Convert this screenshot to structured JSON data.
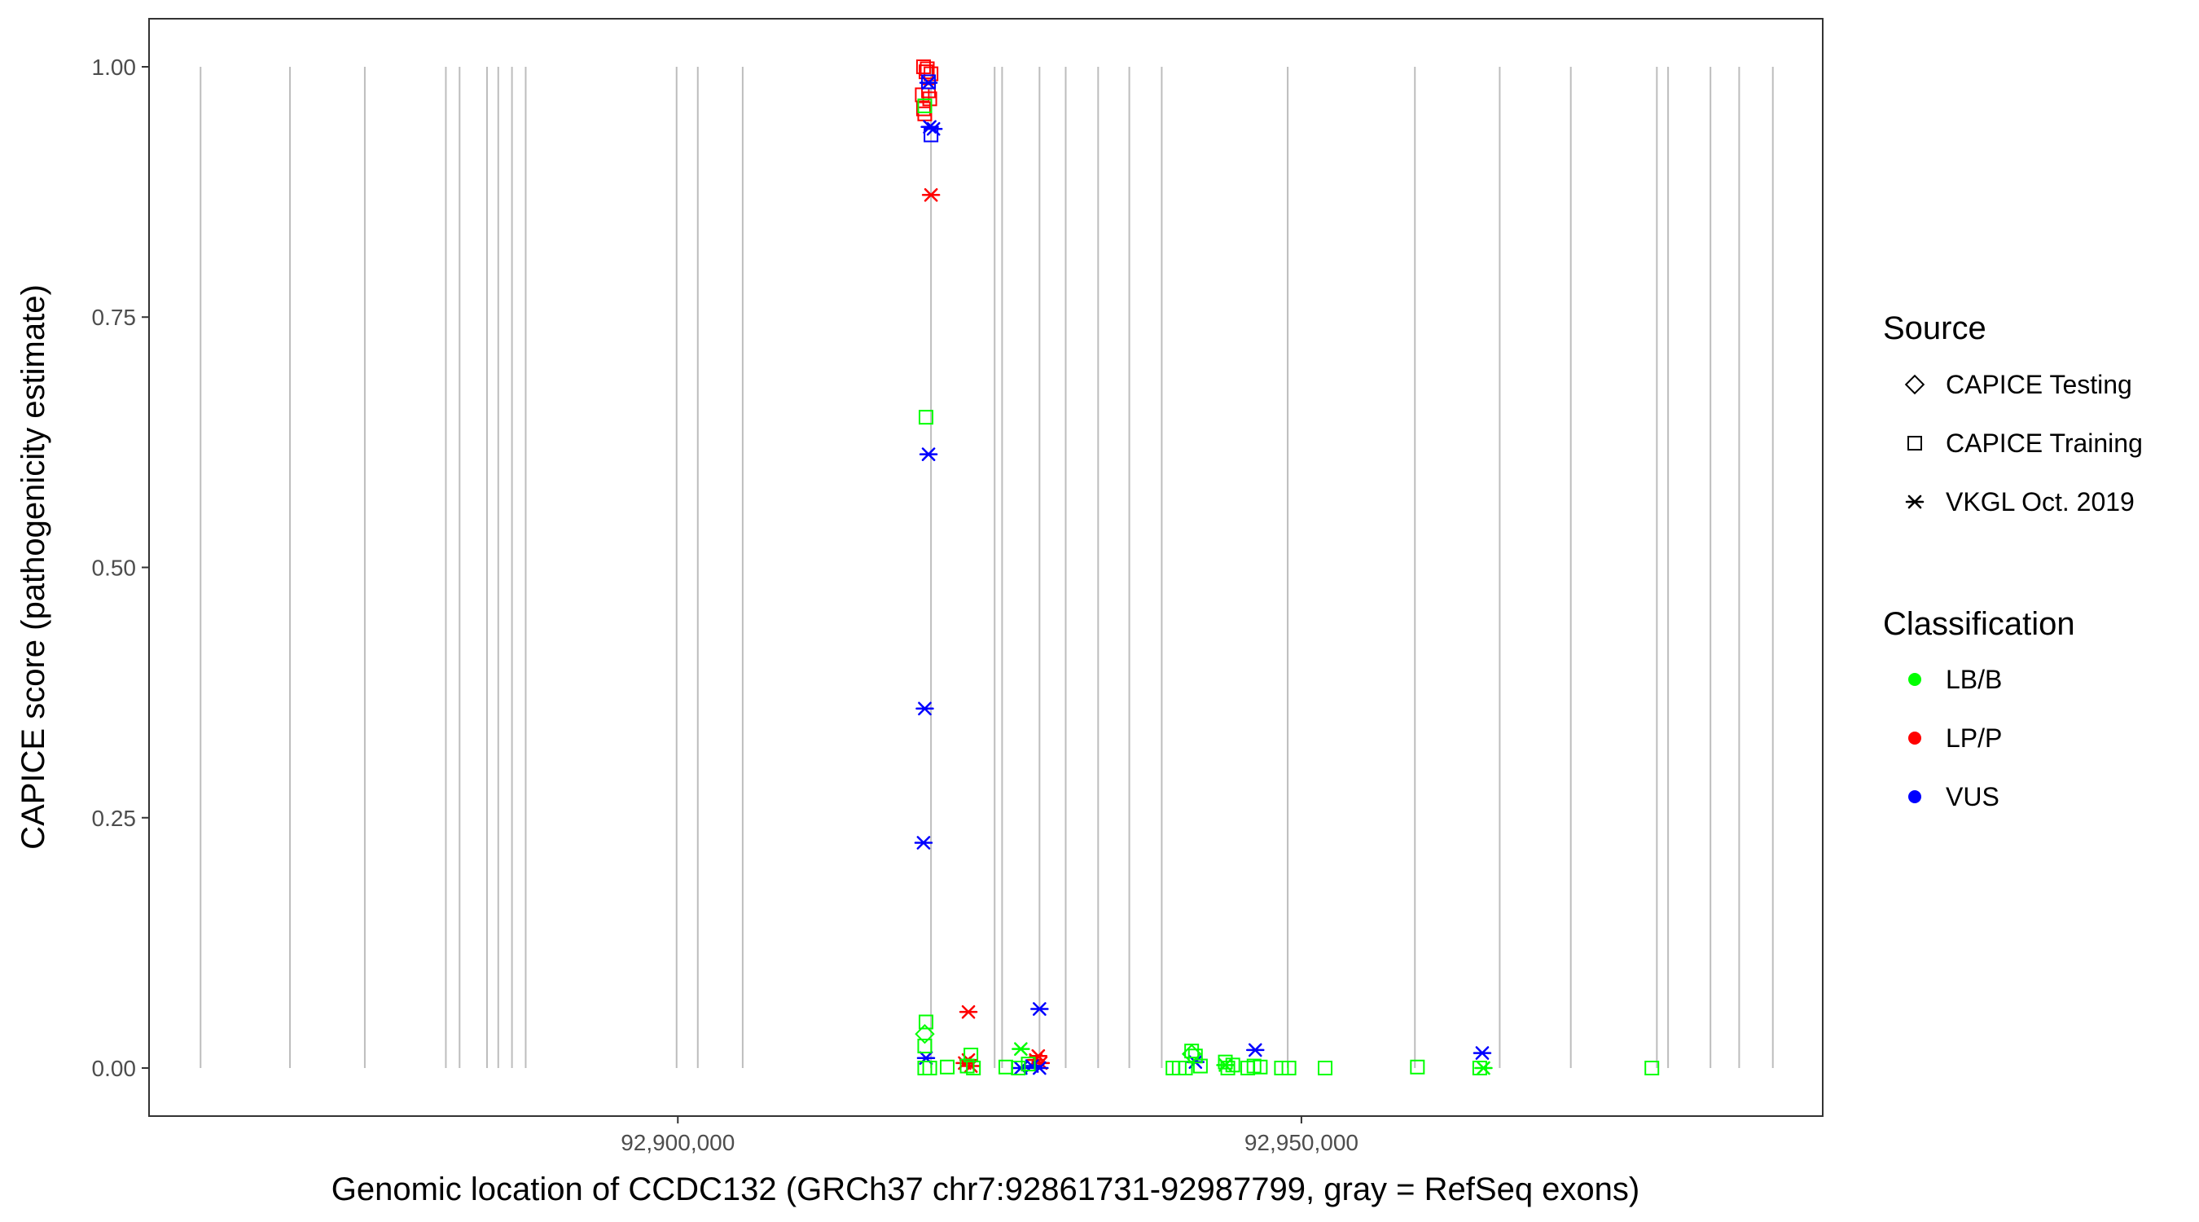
{
  "chart_data": {
    "type": "scatter",
    "xlabel": "Genomic location of CCDC132 (GRCh37 chr7:92861731-92987799, gray = RefSeq exons)",
    "ylabel": "CAPICE score (pathogenicity estimate)",
    "xlim": [
      92857600,
      92991800
    ],
    "ylim": [
      -0.048,
      1.048
    ],
    "x_ticks": [
      {
        "value": 92900000,
        "label": "92,900,000"
      },
      {
        "value": 92950000,
        "label": "92,950,000"
      }
    ],
    "y_ticks": [
      {
        "value": 0.0,
        "label": "0.00"
      },
      {
        "value": 0.25,
        "label": "0.25"
      },
      {
        "value": 0.5,
        "label": "0.50"
      },
      {
        "value": 0.75,
        "label": "0.75"
      },
      {
        "value": 1.0,
        "label": "1.00"
      }
    ],
    "exons": [
      92861731,
      92868900,
      92874900,
      92881400,
      92882500,
      92884700,
      92885600,
      92886700,
      92887800,
      92899900,
      92901600,
      92905200,
      92920300,
      92925400,
      92926000,
      92929000,
      92931100,
      92933700,
      92936200,
      92938800,
      92948900,
      92959100,
      92965900,
      92971600,
      92978500,
      92979400,
      92982800,
      92985100,
      92987799
    ],
    "legend": {
      "source_title": "Source",
      "source_entries": [
        {
          "label": "CAPICE Testing",
          "shape": "diamond"
        },
        {
          "label": "CAPICE Training",
          "shape": "square"
        },
        {
          "label": "VKGL Oct. 2019",
          "shape": "asterisk"
        }
      ],
      "class_title": "Classification",
      "class_entries": [
        {
          "label": "LB/B",
          "color": "#00ff00"
        },
        {
          "label": "LP/P",
          "color": "#ff0000"
        },
        {
          "label": "VUS",
          "color": "#0000ff"
        }
      ],
      "position": "right"
    },
    "series": [
      {
        "name": "CAPICE Training",
        "shape": "square",
        "classification": "LP/P",
        "points": [
          [
            92919700,
            1.0
          ],
          [
            92920000,
            0.998
          ],
          [
            92920300,
            0.993
          ],
          [
            92919900,
            0.995
          ],
          [
            92920100,
            0.976
          ],
          [
            92919600,
            0.972
          ],
          [
            92919700,
            0.958
          ],
          [
            92919800,
            0.953
          ],
          [
            92920200,
            0.968
          ]
        ]
      },
      {
        "name": "VKGL Oct. 2019",
        "shape": "asterisk",
        "classification": "LP/P",
        "points": [
          [
            92920300,
            0.872
          ],
          [
            92923300,
            0.056
          ],
          [
            92923000,
            0.005
          ],
          [
            92923500,
            0.002
          ],
          [
            92923300,
            0.008
          ],
          [
            92928900,
            0.012
          ],
          [
            92929100,
            0.005
          ],
          [
            92928700,
            0.008
          ]
        ]
      },
      {
        "name": "CAPICE Training",
        "shape": "square",
        "classification": "VUS",
        "points": [
          [
            92920300,
            0.932
          ],
          [
            92920100,
            0.985
          ]
        ]
      },
      {
        "name": "VKGL Oct. 2019",
        "shape": "asterisk",
        "classification": "VUS",
        "points": [
          [
            92920200,
            0.94
          ],
          [
            92920500,
            0.938
          ],
          [
            92920100,
            0.984
          ],
          [
            92920100,
            0.613
          ],
          [
            92919800,
            0.359
          ],
          [
            92919700,
            0.225
          ],
          [
            92919900,
            0.01
          ],
          [
            92929000,
            0.059
          ],
          [
            92929000,
            0.0
          ],
          [
            92928400,
            0.002
          ],
          [
            92927500,
            0.0
          ],
          [
            92941500,
            0.006
          ],
          [
            92946300,
            0.018
          ],
          [
            92964500,
            0.015
          ]
        ]
      },
      {
        "name": "CAPICE Training",
        "shape": "square",
        "classification": "LB/B",
        "points": [
          [
            92919800,
            0.961
          ],
          [
            92919900,
            0.65
          ],
          [
            92919900,
            0.046
          ],
          [
            92919800,
            0.022
          ],
          [
            92919800,
            0.0
          ],
          [
            92920200,
            0.0
          ],
          [
            92921600,
            0.001
          ],
          [
            92923500,
            0.013
          ],
          [
            92923200,
            0.002
          ],
          [
            92923700,
            0.0
          ],
          [
            92926300,
            0.001
          ],
          [
            92927300,
            0.0
          ],
          [
            92928100,
            0.004
          ],
          [
            92939700,
            0.0
          ],
          [
            92940200,
            0.0
          ],
          [
            92940700,
            0.0
          ],
          [
            92941200,
            0.017
          ],
          [
            92941500,
            0.012
          ],
          [
            92941900,
            0.002
          ],
          [
            92943900,
            0.006
          ],
          [
            92944100,
            0.0
          ],
          [
            92944500,
            0.003
          ],
          [
            92945700,
            0.0
          ],
          [
            92946200,
            0.002
          ],
          [
            92946700,
            0.001
          ],
          [
            92948400,
            0.0
          ],
          [
            92949000,
            0.0
          ],
          [
            92951900,
            0.0
          ],
          [
            92959300,
            0.001
          ],
          [
            92964300,
            0.0
          ],
          [
            92978100,
            0.0
          ]
        ]
      },
      {
        "name": "VKGL Oct. 2019",
        "shape": "asterisk",
        "classification": "LB/B",
        "points": [
          [
            92927500,
            0.019
          ],
          [
            92943900,
            0.003
          ],
          [
            92964600,
            0.0
          ]
        ]
      },
      {
        "name": "CAPICE Testing",
        "shape": "diamond",
        "classification": "LB/B",
        "points": [
          [
            92919800,
            0.034
          ],
          [
            92941200,
            0.014
          ]
        ]
      }
    ]
  }
}
